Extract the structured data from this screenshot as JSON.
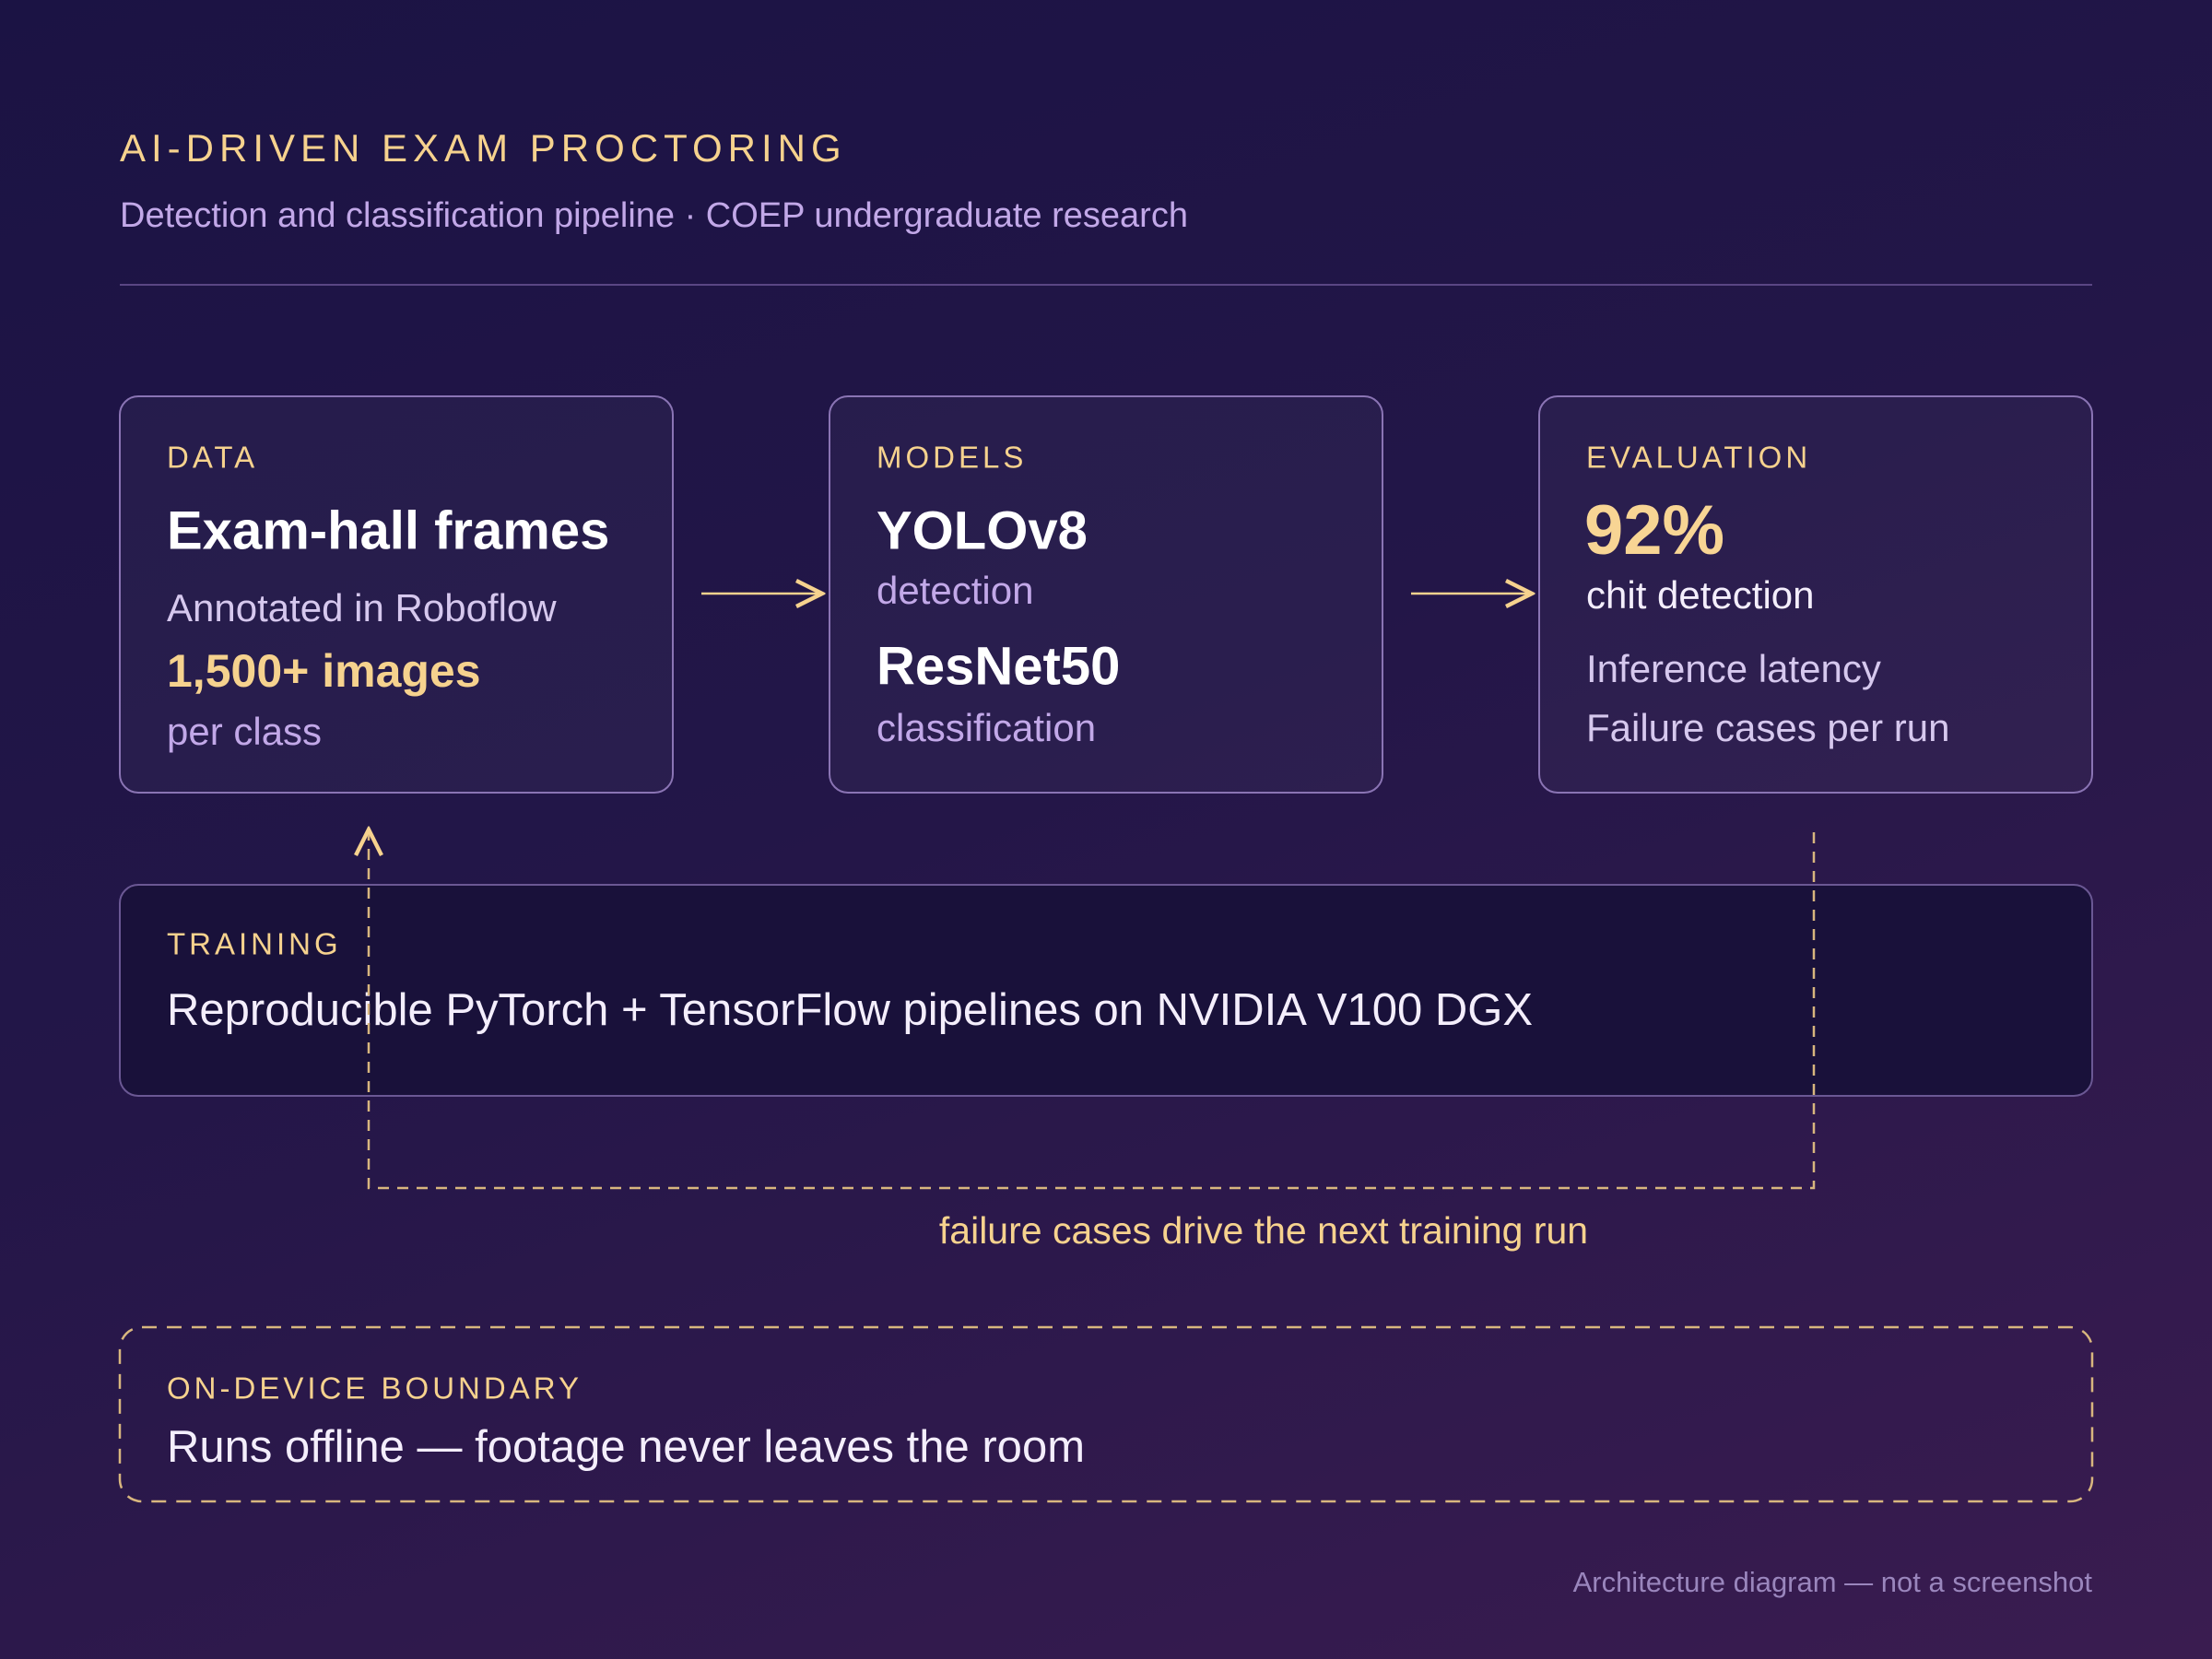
{
  "header": {
    "title": "AI-DRIVEN EXAM PROCTORING",
    "subtitle": "Detection and classification pipeline · COEP undergraduate research"
  },
  "nodes": [
    {
      "label": "DATA",
      "title": "Exam-hall frames",
      "subtitle": "Annotated in Roboflow",
      "highlight": "1,500+ images",
      "note": "per class"
    },
    {
      "label": "MODELS",
      "items": [
        {
          "name": "YOLOv8",
          "role": "detection"
        },
        {
          "name": "ResNet50",
          "role": "classification"
        }
      ]
    },
    {
      "label": "EVALUATION",
      "metric": "92%",
      "metric_label": "chit detection",
      "lines": [
        "Inference latency",
        "Failure cases per run"
      ]
    }
  ],
  "training": {
    "label": "TRAINING",
    "text": "Reproducible PyTorch + TensorFlow pipelines on NVIDIA V100 DGX"
  },
  "feedback": {
    "caption": "failure cases drive the next training run"
  },
  "boundary": {
    "label": "ON-DEVICE BOUNDARY",
    "text": "Runs offline — footage never leaves the room"
  },
  "footer": "Architecture diagram — not a screenshot"
}
